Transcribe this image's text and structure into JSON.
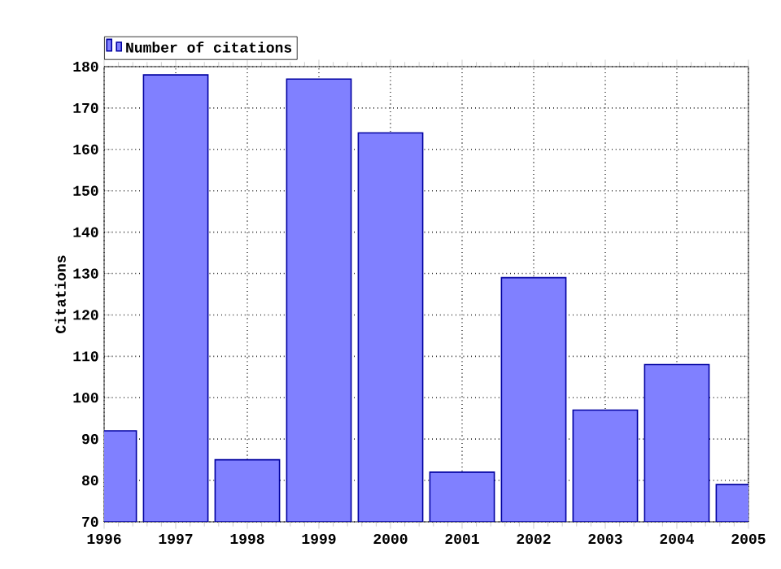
{
  "chart_data": {
    "type": "bar",
    "ylabel": "Citations",
    "x": [
      1996,
      1997,
      1998,
      1999,
      2000,
      2001,
      2002,
      2003,
      2004,
      2005
    ],
    "series": [
      {
        "name": "Number of citations",
        "color": "#8080ff",
        "values": [
          92,
          178,
          85,
          177,
          164,
          82,
          129,
          97,
          108,
          79
        ]
      }
    ],
    "xlim": [
      1996,
      2005
    ],
    "xticks": [
      1996,
      1997,
      1998,
      1999,
      2000,
      2001,
      2002,
      2003,
      2004,
      2005
    ],
    "ylim": [
      70,
      180
    ],
    "yticks": [
      70,
      80,
      90,
      100,
      110,
      120,
      130,
      140,
      150,
      160,
      170,
      180
    ],
    "grid": true,
    "legend": "top left"
  }
}
